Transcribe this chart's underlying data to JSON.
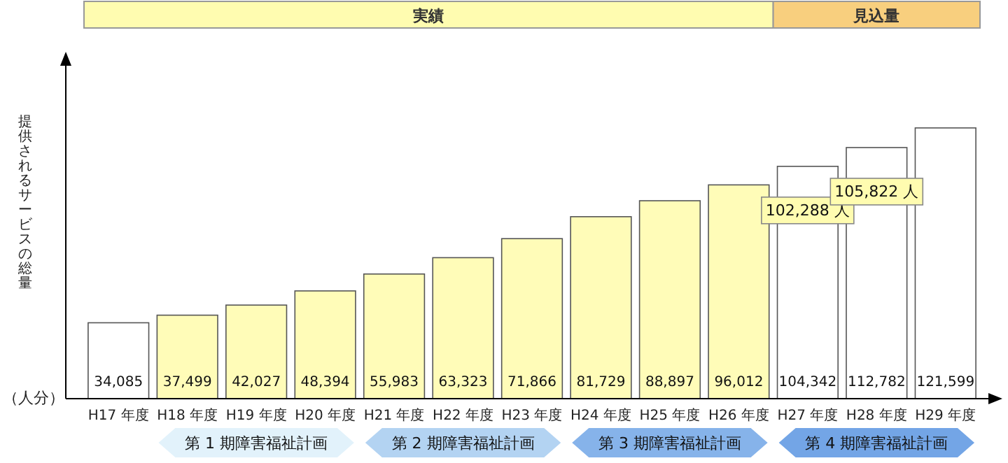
{
  "chart_data": {
    "type": "bar",
    "ylabel": "提供されるサービスの総量",
    "categories": [
      "H17 年度",
      "H18 年度",
      "H19 年度",
      "H20 年度",
      "H21 年度",
      "H22 年度",
      "H23 年度",
      "H24 年度",
      "H25 年度",
      "H26 年度",
      "H27 年度",
      "H28 年度",
      "H29 年度"
    ],
    "values": [
      34085,
      37499,
      42027,
      48394,
      55983,
      63323,
      71866,
      81729,
      88897,
      96012,
      104342,
      112782,
      121599
    ],
    "value_labels": [
      "34,085",
      "37,499",
      "42,027",
      "48,394",
      "55,983",
      "63,323",
      "71,866",
      "81,729",
      "88,897",
      "96,012",
      "104,342",
      "112,782",
      "121,599"
    ],
    "colors": [
      "#ffffff",
      "#fffcb8",
      "#fffcb8",
      "#fffcb8",
      "#fffcb8",
      "#fffcb8",
      "#fffcb8",
      "#fffcb8",
      "#fffcb8",
      "#fffcb8",
      "#ffffff",
      "#ffffff",
      "#ffffff"
    ],
    "annotations": [
      "実績",
      "見込量",
      "第 1 期障害福祉計画",
      "第 2 期障害福祉計画",
      "第 3 期障害福祉計画",
      "第 4 期障害福祉計画",
      "（人分）",
      "102,288 人",
      "105,822 人"
    ]
  }
}
